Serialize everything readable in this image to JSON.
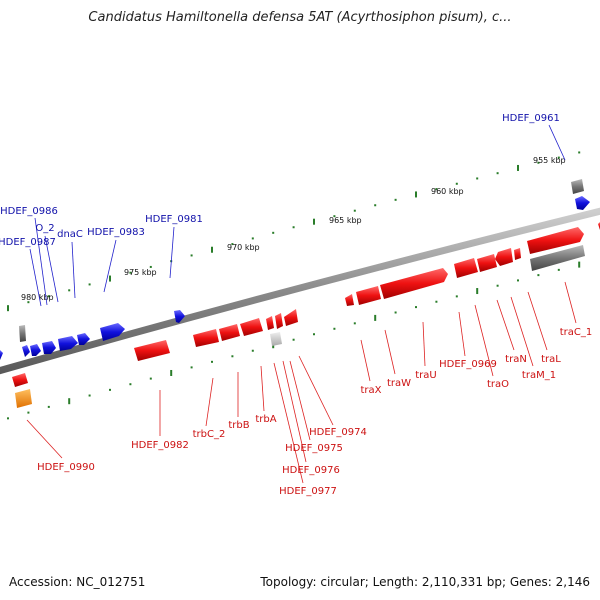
{
  "header": {
    "title": "Candidatus Hamiltonella defensa 5AT (Acyrthosiphon pisum), c..."
  },
  "footer": {
    "accession": "Accession: NC_012751",
    "summary": "Topology: circular; Length: 2,110,331 bp; Genes: 2,146"
  },
  "colors": {
    "red": "#ee1111",
    "blue": "#1111dd",
    "gray": "#777777",
    "green": "#2a7d2a",
    "orange": "#f08a10"
  },
  "scale_labels": [
    "955 kbp",
    "960 kbp",
    "965 kbp",
    "970 kbp",
    "975 kbp",
    "980 kbp"
  ],
  "genes": [
    {
      "label": "HDEF_0961",
      "color": "blue"
    },
    {
      "label": "HDEF_0981",
      "color": "blue"
    },
    {
      "label": "HDEF_0983",
      "color": "blue"
    },
    {
      "label": "dnaC",
      "color": "blue"
    },
    {
      "label": "O_2",
      "color": "blue"
    },
    {
      "label": "HDEF_0986",
      "color": "blue"
    },
    {
      "label": "HDEF_0987",
      "color": "blue"
    },
    {
      "label": "HDEF_0990",
      "color": "red"
    },
    {
      "label": "HDEF_0982",
      "color": "red"
    },
    {
      "label": "trbC_2",
      "color": "red"
    },
    {
      "label": "trbB",
      "color": "red"
    },
    {
      "label": "trbA",
      "color": "red"
    },
    {
      "label": "HDEF_0974",
      "color": "red"
    },
    {
      "label": "HDEF_0975",
      "color": "red"
    },
    {
      "label": "HDEF_0976",
      "color": "red"
    },
    {
      "label": "HDEF_0977",
      "color": "red"
    },
    {
      "label": "traX",
      "color": "red"
    },
    {
      "label": "traW",
      "color": "red"
    },
    {
      "label": "traU",
      "color": "red"
    },
    {
      "label": "HDEF_0969",
      "color": "red"
    },
    {
      "label": "traO",
      "color": "red"
    },
    {
      "label": "traN",
      "color": "red"
    },
    {
      "label": "traM_1",
      "color": "red"
    },
    {
      "label": "traL",
      "color": "red"
    },
    {
      "label": "traC_1",
      "color": "red"
    }
  ]
}
